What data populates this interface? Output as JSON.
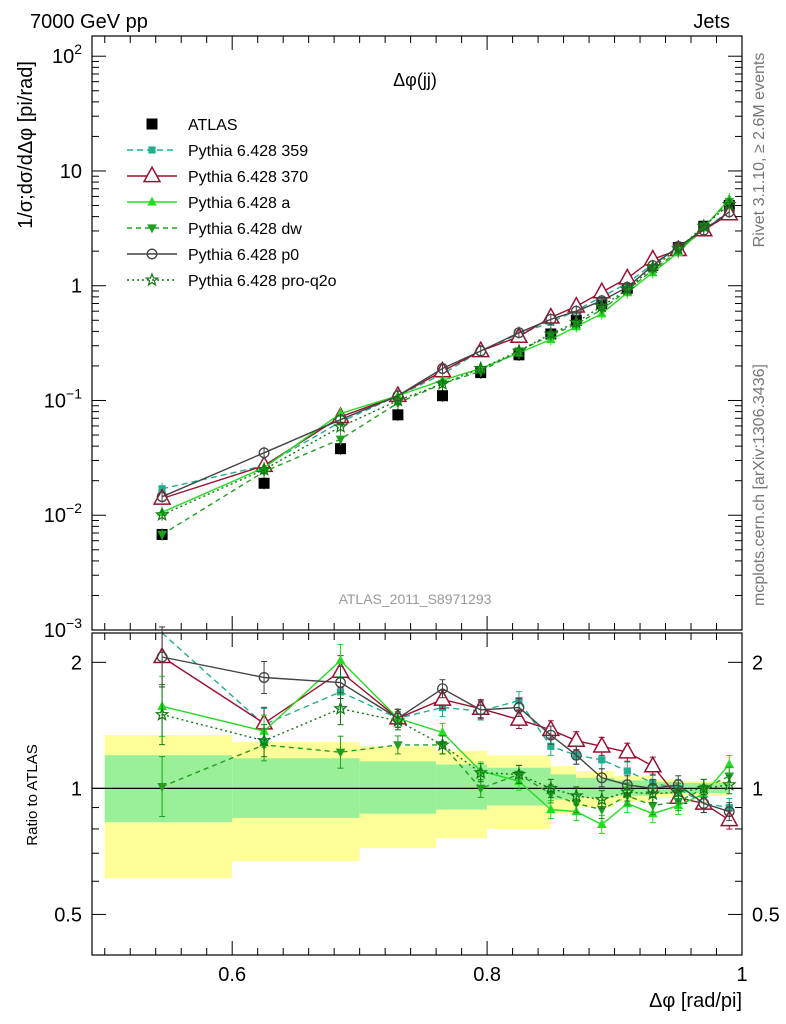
{
  "header": {
    "left": "7000 GeV pp",
    "right": "Jets"
  },
  "side_labels": {
    "top": "Rivet 3.1.10, ≥ 2.6M events",
    "bottom": "mcplots.cern.ch [arXiv:1306.3436]"
  },
  "chart_data": [
    {
      "type": "scatter",
      "title": "Δφ(jj)",
      "watermark": "ATLAS_2011_S8971293",
      "ylabel": "1/σ;dσ/dΔφ [pi/rad]",
      "xlabel": "Δφ [rad/pi]",
      "xlim": [
        0.49,
        1.0
      ],
      "ylim": [
        0.001,
        150
      ],
      "yscale": "log",
      "ytick_labels": [
        "10^-3",
        "10^-2",
        "10^-1",
        "1",
        "10",
        "10^2"
      ],
      "xtick_labels": [
        "0.6",
        "0.8",
        "1"
      ],
      "legend_position": "top-left",
      "x": [
        0.545,
        0.625,
        0.685,
        0.73,
        0.765,
        0.795,
        0.825,
        0.85,
        0.87,
        0.89,
        0.91,
        0.93,
        0.95,
        0.97,
        0.99
      ],
      "series": [
        {
          "name": "ATLAS",
          "color": "#000000",
          "marker": "square-filled",
          "dash": "none",
          "values": [
            0.0068,
            0.019,
            0.038,
            0.075,
            0.11,
            0.175,
            0.25,
            0.38,
            0.5,
            0.7,
            0.95,
            1.5,
            2.15,
            3.3,
            5.0
          ]
        },
        {
          "name": "Pythia 6.428 359",
          "color": "#20b090",
          "marker": "square-small",
          "dash": "6,4",
          "values": [
            0.017,
            0.027,
            0.065,
            0.11,
            0.17,
            0.27,
            0.38,
            0.48,
            0.61,
            0.8,
            1.05,
            1.55,
            2.15,
            3.05,
            4.5
          ]
        },
        {
          "name": "Pythia 6.428 370",
          "color": "#9b1030",
          "marker": "triangle-open",
          "dash": "none",
          "values": [
            0.014,
            0.027,
            0.072,
            0.11,
            0.18,
            0.27,
            0.36,
            0.53,
            0.66,
            0.88,
            1.16,
            1.7,
            2.05,
            3.05,
            4.2
          ]
        },
        {
          "name": "Pythia 6.428 a",
          "color": "#22dd22",
          "marker": "triangle-filled",
          "dash": "none",
          "values": [
            0.0106,
            0.026,
            0.077,
            0.11,
            0.15,
            0.19,
            0.26,
            0.34,
            0.44,
            0.57,
            0.87,
            1.3,
            1.95,
            3.2,
            5.7
          ]
        },
        {
          "name": "Pythia 6.428 dw",
          "color": "#20a020",
          "marker": "triangle-down-filled",
          "dash": "5,4",
          "values": [
            0.0068,
            0.024,
            0.046,
            0.095,
            0.14,
            0.18,
            0.27,
            0.37,
            0.46,
            0.62,
            0.91,
            1.37,
            2.0,
            3.3,
            5.4
          ]
        },
        {
          "name": "Pythia 6.428 p0",
          "color": "#444444",
          "marker": "circle-open",
          "dash": "none",
          "values": [
            0.0145,
            0.035,
            0.068,
            0.11,
            0.19,
            0.27,
            0.39,
            0.51,
            0.6,
            0.74,
            0.97,
            1.5,
            2.2,
            3.05,
            4.4
          ]
        },
        {
          "name": "Pythia 6.428 pro-q2o",
          "color": "#117711",
          "marker": "star",
          "dash": "2,3",
          "values": [
            0.0101,
            0.025,
            0.059,
            0.1,
            0.14,
            0.19,
            0.27,
            0.38,
            0.48,
            0.66,
            0.93,
            1.45,
            2.1,
            3.3,
            5.1
          ]
        }
      ]
    },
    {
      "type": "line",
      "ylabel": "Ratio to ATLAS",
      "ylim": [
        0.4,
        2.35
      ],
      "yscale": "log",
      "ytick_labels": [
        "0.5",
        "1",
        "2"
      ],
      "band_edges": [
        0.5,
        0.6,
        0.7,
        0.76,
        0.8,
        0.85,
        0.87,
        0.9,
        0.93,
        0.95,
        0.97,
        0.99
      ],
      "band_yellow_low": [
        0.61,
        0.67,
        0.72,
        0.76,
        0.8,
        0.87,
        0.9,
        0.93,
        0.95,
        0.96,
        0.96
      ],
      "band_yellow_high": [
        1.34,
        1.29,
        1.26,
        1.23,
        1.2,
        1.13,
        1.1,
        1.07,
        1.05,
        1.04,
        1.04
      ],
      "band_green_low": [
        0.83,
        0.85,
        0.87,
        0.89,
        0.91,
        0.94,
        0.95,
        0.96,
        0.97,
        0.975,
        0.975
      ],
      "band_green_high": [
        1.2,
        1.18,
        1.16,
        1.14,
        1.12,
        1.08,
        1.06,
        1.045,
        1.035,
        1.03,
        1.03
      ],
      "series": [
        {
          "name": "Pythia 6.428 359",
          "values": [
            2.55,
            1.42,
            1.7,
            1.47,
            1.56,
            1.53,
            1.62,
            1.26,
            1.2,
            1.17,
            1.1,
            1.03,
            1.0,
            0.92,
            0.9
          ]
        },
        {
          "name": "Pythia 6.428 370",
          "values": [
            2.06,
            1.43,
            1.9,
            1.47,
            1.63,
            1.55,
            1.46,
            1.38,
            1.3,
            1.26,
            1.22,
            1.13,
            0.95,
            0.92,
            0.84
          ]
        },
        {
          "name": "Pythia 6.428 a",
          "values": [
            1.57,
            1.37,
            2.02,
            1.47,
            1.36,
            1.1,
            1.04,
            0.89,
            0.88,
            0.82,
            0.92,
            0.87,
            0.91,
            0.97,
            1.14
          ]
        },
        {
          "name": "Pythia 6.428 dw",
          "values": [
            1.01,
            1.27,
            1.22,
            1.27,
            1.27,
            1.0,
            1.08,
            0.97,
            0.92,
            0.89,
            0.96,
            0.91,
            0.93,
            1.0,
            1.07
          ]
        },
        {
          "name": "Pythia 6.428 p0",
          "values": [
            2.06,
            1.84,
            1.79,
            1.47,
            1.73,
            1.54,
            1.56,
            1.34,
            1.2,
            1.06,
            1.02,
            1.0,
            1.02,
            0.92,
            0.88
          ]
        },
        {
          "name": "Pythia 6.428 pro-q2o",
          "values": [
            1.5,
            1.3,
            1.55,
            1.45,
            1.27,
            1.09,
            1.08,
            1.0,
            0.96,
            0.94,
            0.98,
            0.97,
            0.98,
            1.0,
            1.02
          ]
        }
      ]
    }
  ]
}
